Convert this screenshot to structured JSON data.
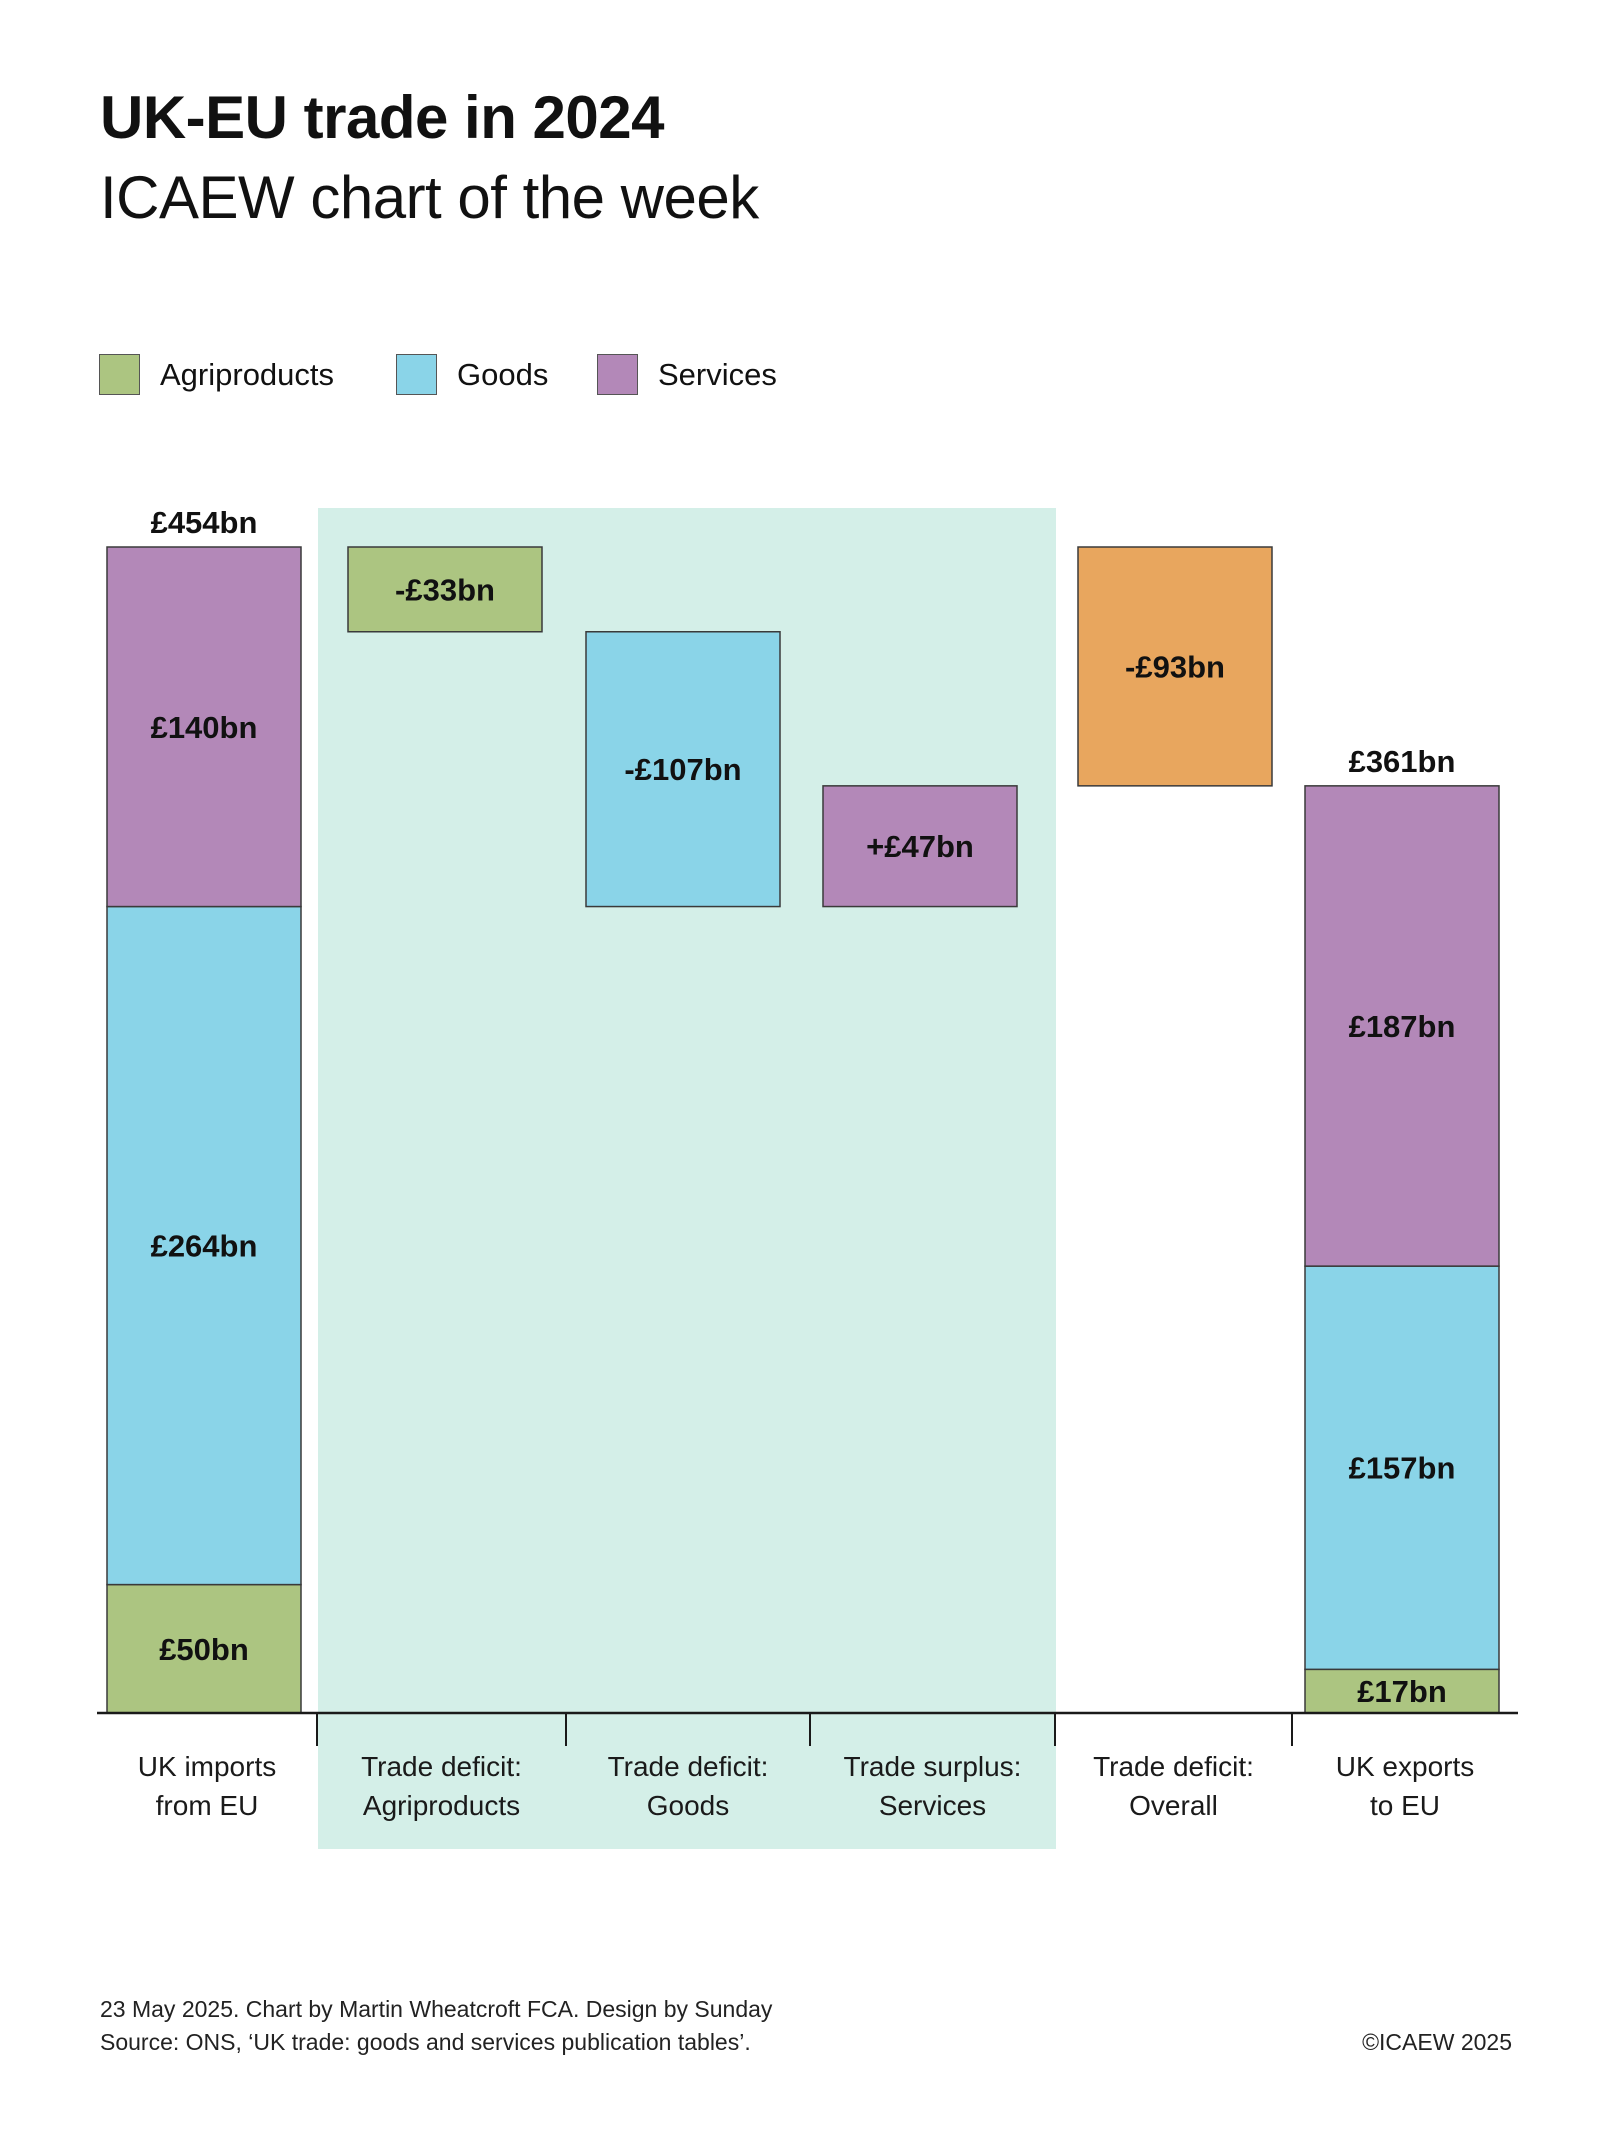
{
  "header": {
    "title": "UK-EU trade in 2024",
    "subtitle": "ICAEW chart of the week"
  },
  "legend": [
    {
      "label": "Agriproducts",
      "color": "#acc581"
    },
    {
      "label": "Goods",
      "color": "#8ad4e8"
    },
    {
      "label": "Services",
      "color": "#b388b8"
    }
  ],
  "chart_data": {
    "type": "waterfall",
    "title": "UK-EU trade in 2024",
    "units": "£bn",
    "ylim": [
      0,
      454
    ],
    "grid": false,
    "legend_position": "top-left",
    "highlight_band": {
      "from_category": 1,
      "to_category": 3,
      "color": "#d4efe8"
    },
    "categories": [
      {
        "label_line1": "UK imports",
        "label_line2": "from EU"
      },
      {
        "label_line1": "Trade deficit:",
        "label_line2": "Agriproducts"
      },
      {
        "label_line1": "Trade deficit:",
        "label_line2": "Goods"
      },
      {
        "label_line1": "Trade surplus:",
        "label_line2": "Services"
      },
      {
        "label_line1": "Trade deficit:",
        "label_line2": "Overall"
      },
      {
        "label_line1": "UK exports",
        "label_line2": "to EU"
      }
    ],
    "bars": [
      {
        "category": 0,
        "segment": "Agriproducts",
        "from": 0,
        "to": 50,
        "value": 50,
        "label": "£50bn",
        "color": "#acc581"
      },
      {
        "category": 0,
        "segment": "Goods",
        "from": 50,
        "to": 314,
        "value": 264,
        "label": "£264bn",
        "color": "#8ad4e8"
      },
      {
        "category": 0,
        "segment": "Services",
        "from": 314,
        "to": 454,
        "value": 140,
        "label": "£140bn",
        "color": "#b388b8"
      },
      {
        "category": 1,
        "segment": "Agriproducts",
        "from": 454,
        "to": 421,
        "value": -33,
        "label": "-£33bn",
        "color": "#acc581"
      },
      {
        "category": 2,
        "segment": "Goods",
        "from": 421,
        "to": 314,
        "value": -107,
        "label": "-£107bn",
        "color": "#8ad4e8"
      },
      {
        "category": 3,
        "segment": "Services",
        "from": 314,
        "to": 361,
        "value": 47,
        "label": "+£47bn",
        "color": "#b388b8"
      },
      {
        "category": 4,
        "segment": "Overall",
        "from": 454,
        "to": 361,
        "value": -93,
        "label": "-£93bn",
        "color": "#e8a65e"
      },
      {
        "category": 5,
        "segment": "Agriproducts",
        "from": 0,
        "to": 17,
        "value": 17,
        "label": "£17bn",
        "color": "#acc581"
      },
      {
        "category": 5,
        "segment": "Goods",
        "from": 17,
        "to": 174,
        "value": 157,
        "label": "£157bn",
        "color": "#8ad4e8"
      },
      {
        "category": 5,
        "segment": "Services",
        "from": 174,
        "to": 361,
        "value": 187,
        "label": "£187bn",
        "color": "#b388b8"
      }
    ],
    "totals": [
      {
        "category": 0,
        "value": 454,
        "label": "£454bn"
      },
      {
        "category": 5,
        "value": 361,
        "label": "£361bn"
      }
    ]
  },
  "footer": {
    "credit": "23 May 2025.  Chart by Martin Wheatcroft FCA.  Design by Sunday",
    "source": "Source: ONS, ‘UK trade: goods and services publication tables’.",
    "copyright": "©ICAEW 2025"
  }
}
